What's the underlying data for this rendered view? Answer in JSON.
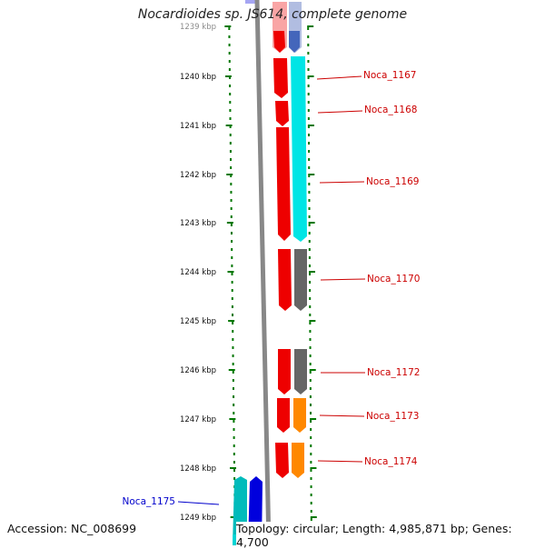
{
  "title": "Nocardioides sp. JS614, complete genome",
  "accession_text": "Accession: NC_008699",
  "topology_text": "Topology: circular; Length: 4,985,871 bp; Genes: 4,700",
  "ruler": [
    {
      "label": "1239 kbp"
    },
    {
      "label": "1240 kbp"
    },
    {
      "label": "1241 kbp"
    },
    {
      "label": "1242 kbp"
    },
    {
      "label": "1243 kbp"
    },
    {
      "label": "1244 kbp"
    },
    {
      "label": "1245 kbp"
    },
    {
      "label": "1246 kbp"
    },
    {
      "label": "1247 kbp"
    },
    {
      "label": "1248 kbp"
    },
    {
      "label": "1249 kbp"
    }
  ],
  "gene_labels": [
    {
      "name": "Noca_1167",
      "color": "#cc0000"
    },
    {
      "name": "Noca_1168",
      "color": "#cc0000"
    },
    {
      "name": "Noca_1169",
      "color": "#cc0000"
    },
    {
      "name": "Noca_1170",
      "color": "#cc0000"
    },
    {
      "name": "Noca_1172",
      "color": "#cc0000"
    },
    {
      "name": "Noca_1173",
      "color": "#cc0000"
    },
    {
      "name": "Noca_1174",
      "color": "#cc0000"
    },
    {
      "name": "Noca_1175",
      "color": "#0000cc"
    }
  ],
  "colors": {
    "tick_green": "#007700",
    "backbone": "#888888",
    "gene_red": "#ee0000",
    "gene_cyan": "#00e5e5",
    "gene_gray": "#666666",
    "gene_orange": "#ff8800",
    "gene_blue": "#0000dd",
    "gene_teal": "#00bbbb"
  }
}
